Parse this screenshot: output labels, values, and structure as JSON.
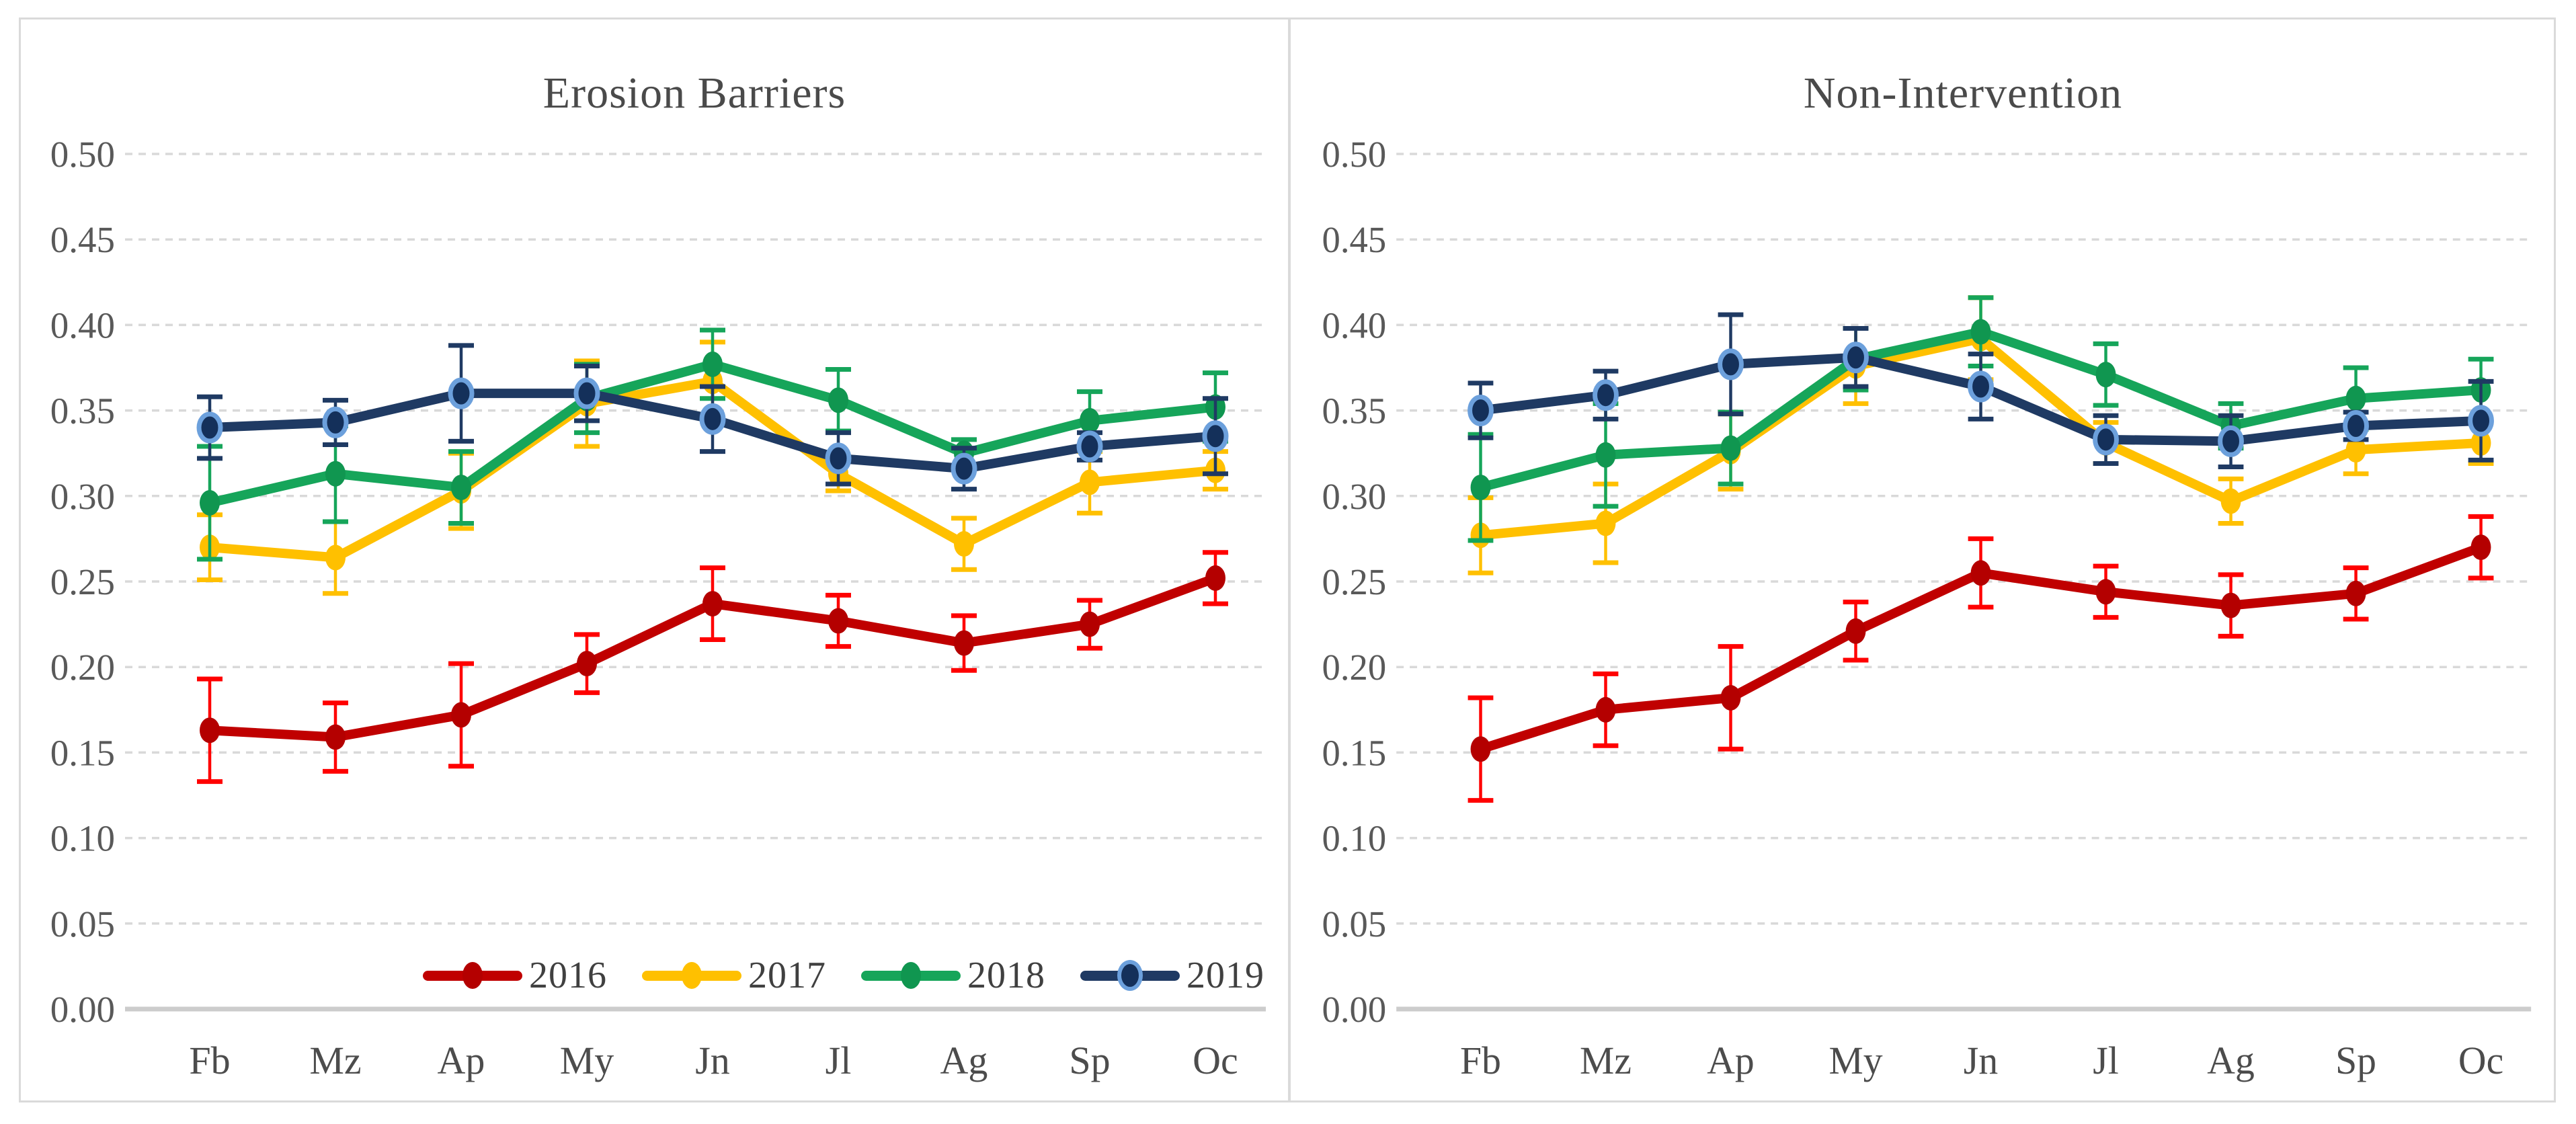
{
  "axes": {
    "y_ticks": [
      "0.50",
      "0.45",
      "0.40",
      "0.35",
      "0.30",
      "0.25",
      "0.20",
      "0.15",
      "0.10",
      "0.05",
      "0.00"
    ],
    "y_min": 0.0,
    "y_max": 0.5,
    "y_step": 0.05,
    "categories": [
      "Fb",
      "Mz",
      "Ap",
      "My",
      "Jn",
      "Jl",
      "Ag",
      "Sp",
      "Oc"
    ]
  },
  "colors": {
    "grid": "#D9D9D9",
    "axis_line": "#CCCCCC",
    "panel_border": "#DADADA",
    "title_text": "#4A4A4A",
    "tick_text": "#595959",
    "legend_text": "#404040",
    "red": "#C00000",
    "red_error": "#FF0000",
    "gold": "#FFC000",
    "green": "#16A55A",
    "navy": "#1F3A63",
    "navy_marker_ring": "#6CA0DC"
  },
  "legend": {
    "items": [
      "2016",
      "2017",
      "2018",
      "2019"
    ]
  },
  "chart_data": [
    {
      "type": "line",
      "title": "Erosion Barriers",
      "categories": [
        "Fb",
        "Mz",
        "Ap",
        "My",
        "Jn",
        "Jl",
        "Ag",
        "Sp",
        "Oc"
      ],
      "ylim": [
        0.0,
        0.5
      ],
      "y_step": 0.05,
      "grid": "horizontal-dashed",
      "legend_position": "bottom-center",
      "has_legend": true,
      "series": [
        {
          "name": "2016",
          "color": "#C00000",
          "error_color": "#FF0000",
          "marker": "#B40000",
          "values": [
            0.163,
            0.159,
            0.172,
            0.202,
            0.237,
            0.227,
            0.214,
            0.225,
            0.252
          ],
          "errors": [
            0.03,
            0.02,
            0.03,
            0.017,
            0.021,
            0.015,
            0.016,
            0.014,
            0.015
          ]
        },
        {
          "name": "2017",
          "color": "#FFC000",
          "error_color": "#FFC000",
          "marker": "#FFC000",
          "values": [
            0.27,
            0.264,
            0.303,
            0.354,
            0.367,
            0.313,
            0.272,
            0.308,
            0.315
          ],
          "errors": [
            0.019,
            0.021,
            0.022,
            0.025,
            0.023,
            0.01,
            0.015,
            0.018,
            0.011
          ]
        },
        {
          "name": "2018",
          "color": "#16A55A",
          "error_color": "#16A55A",
          "marker": "#109650",
          "values": [
            0.296,
            0.313,
            0.305,
            0.357,
            0.377,
            0.356,
            0.325,
            0.344,
            0.352
          ],
          "errors": [
            0.033,
            0.028,
            0.021,
            0.02,
            0.02,
            0.018,
            0.008,
            0.017,
            0.02
          ]
        },
        {
          "name": "2019",
          "color": "#1F3A63",
          "error_color": "#1F3A63",
          "marker": "#14305A",
          "ring": "#6CA0DC",
          "values": [
            0.34,
            0.343,
            0.36,
            0.36,
            0.345,
            0.322,
            0.316,
            0.329,
            0.335
          ],
          "errors": [
            0.018,
            0.013,
            0.028,
            0.016,
            0.019,
            0.015,
            0.012,
            0.008,
            0.022
          ]
        }
      ]
    },
    {
      "type": "line",
      "title": "Non-Intervention",
      "categories": [
        "Fb",
        "Mz",
        "Ap",
        "My",
        "Jn",
        "Jl",
        "Ag",
        "Sp",
        "Oc"
      ],
      "ylim": [
        0.0,
        0.5
      ],
      "y_step": 0.05,
      "grid": "horizontal-dashed",
      "legend_position": "none",
      "has_legend": false,
      "series": [
        {
          "name": "2016",
          "color": "#C00000",
          "error_color": "#FF0000",
          "marker": "#B40000",
          "values": [
            0.152,
            0.175,
            0.182,
            0.221,
            0.255,
            0.244,
            0.236,
            0.243,
            0.27
          ],
          "errors": [
            0.03,
            0.021,
            0.03,
            0.017,
            0.02,
            0.015,
            0.018,
            0.015,
            0.018
          ]
        },
        {
          "name": "2017",
          "color": "#FFC000",
          "error_color": "#FFC000",
          "marker": "#FFC000",
          "values": [
            0.277,
            0.284,
            0.326,
            0.376,
            0.392,
            0.331,
            0.297,
            0.327,
            0.331
          ],
          "errors": [
            0.022,
            0.023,
            0.022,
            0.022,
            0.024,
            0.012,
            0.013,
            0.014,
            0.012
          ]
        },
        {
          "name": "2018",
          "color": "#16A55A",
          "error_color": "#16A55A",
          "marker": "#109650",
          "values": [
            0.305,
            0.324,
            0.328,
            0.38,
            0.396,
            0.371,
            0.341,
            0.357,
            0.362
          ],
          "errors": [
            0.031,
            0.03,
            0.021,
            0.018,
            0.02,
            0.018,
            0.013,
            0.018,
            0.018
          ]
        },
        {
          "name": "2019",
          "color": "#1F3A63",
          "error_color": "#1F3A63",
          "marker": "#14305A",
          "ring": "#6CA0DC",
          "values": [
            0.35,
            0.359,
            0.377,
            0.381,
            0.364,
            0.333,
            0.332,
            0.341,
            0.344
          ],
          "errors": [
            0.016,
            0.014,
            0.029,
            0.017,
            0.019,
            0.014,
            0.015,
            0.008,
            0.023
          ]
        }
      ]
    }
  ]
}
